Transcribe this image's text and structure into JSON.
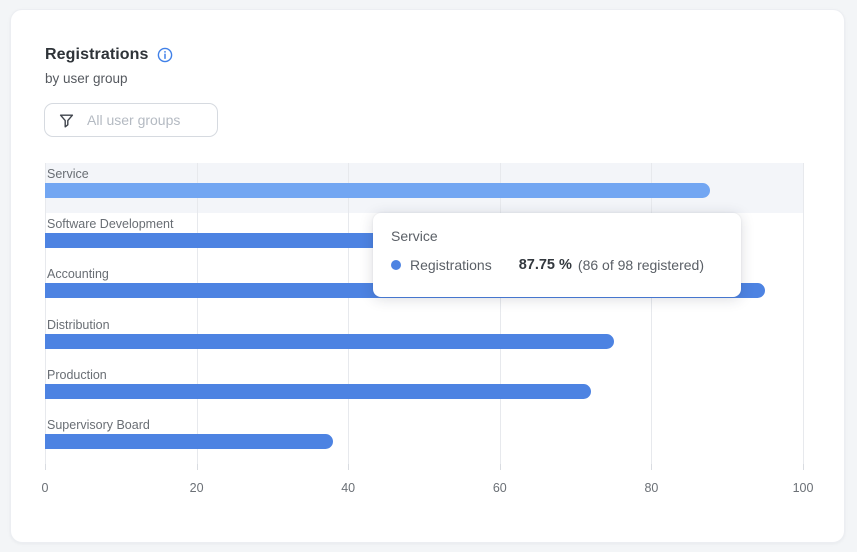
{
  "card": {
    "title": "Registrations",
    "subtitle": "by user group",
    "filter_placeholder": "All user groups"
  },
  "tooltip": {
    "category": "Service",
    "series": "Registrations",
    "value": "87.75 %",
    "detail": "(86 of 98 registered)"
  },
  "chart_data": {
    "type": "bar",
    "orientation": "horizontal",
    "title": "Registrations by user group",
    "categories": [
      "Service",
      "Software Development",
      "Accounting",
      "Distribution",
      "Production",
      "Supervisory Board"
    ],
    "series": [
      {
        "name": "Registrations",
        "unit": "%",
        "values": [
          87.75,
          60,
          95,
          75,
          72,
          38
        ]
      }
    ],
    "xlim": [
      0,
      100
    ],
    "x_ticks": [
      0,
      20,
      40,
      60,
      80,
      100
    ],
    "grid": true,
    "legend": "none",
    "highlighted_category": "Service",
    "highlighted_value_detail": "86 of 98 registered"
  },
  "colors": {
    "bar": "#4d83e2",
    "bar_highlight": "#72a6f2",
    "row_highlight_bg": "#f3f5f9",
    "info_accent": "#4080e8",
    "gridline": "#e7e9ed"
  }
}
